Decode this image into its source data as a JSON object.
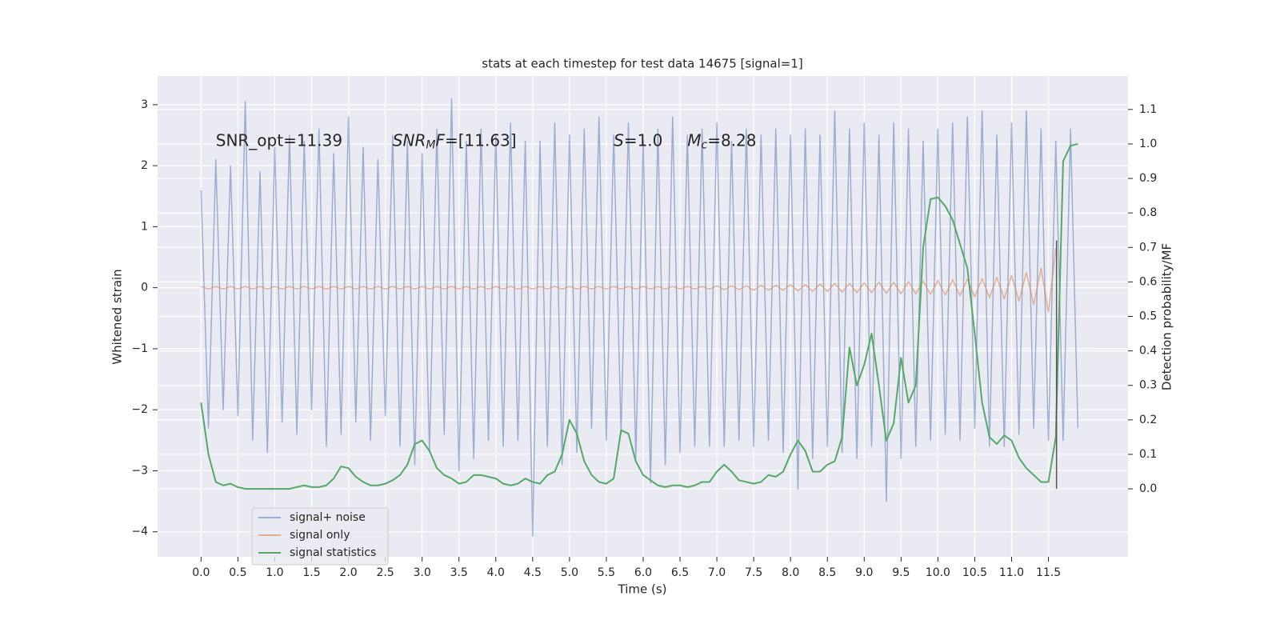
{
  "chart_data": {
    "type": "line",
    "title": "stats at each timestep for test data 14675 [signal=1]",
    "x_label": "Time (s)",
    "y_label": "Whitened strain",
    "y2_label": "Detection probability/MF",
    "xlim": [
      -0.59,
      12.58
    ],
    "ylim": [
      -4.41,
      3.47
    ],
    "y2lim": [
      -0.197,
      1.197
    ],
    "xticks": [
      {
        "value": 0,
        "label": "0.0"
      },
      0.5,
      {
        "value": 1,
        "label": "1.0"
      },
      1.5,
      {
        "value": 2,
        "label": "2.0"
      },
      2.5,
      {
        "value": 3,
        "label": "3.0"
      },
      3.5,
      {
        "value": 4,
        "label": "4.0"
      },
      4.5,
      {
        "value": 5,
        "label": "5.0"
      },
      5.5,
      {
        "value": 6,
        "label": "6.0"
      },
      6.5,
      {
        "value": 7,
        "label": "7.0"
      },
      7.5,
      {
        "value": 8,
        "label": "8.0"
      },
      8.5,
      {
        "value": 9,
        "label": "9.0"
      },
      9.5,
      {
        "value": 10,
        "label": "10.0"
      },
      10.5,
      {
        "value": 11,
        "label": "11.0"
      },
      11.5
    ],
    "yticks": [
      {
        "value": -4,
        "label": "−4"
      },
      {
        "value": -3,
        "label": "−3"
      },
      {
        "value": -2,
        "label": "−2"
      },
      {
        "value": -1,
        "label": "−1"
      },
      0,
      1,
      2,
      3
    ],
    "y2ticks": [
      {
        "value": 0,
        "label": "0.0"
      },
      0.1,
      0.2,
      0.3,
      0.4,
      0.5,
      0.6,
      0.7,
      0.8,
      0.9,
      {
        "value": 1,
        "label": "1.0"
      },
      1.1
    ],
    "grid": true,
    "legend": "lower left",
    "x": [
      0,
      0.1,
      0.2,
      0.3,
      0.4,
      0.5,
      0.6,
      0.7,
      0.8,
      0.9,
      1,
      1.1,
      1.2,
      1.3,
      1.4,
      1.5,
      1.6,
      1.7,
      1.8,
      1.9,
      2,
      2.1,
      2.2,
      2.3,
      2.4,
      2.5,
      2.6,
      2.7,
      2.8,
      2.9,
      3,
      3.1,
      3.2,
      3.3,
      3.4,
      3.5,
      3.6,
      3.7,
      3.8,
      3.9,
      4,
      4.1,
      4.2,
      4.3,
      4.4,
      4.5,
      4.6,
      4.7,
      4.8,
      4.9,
      5,
      5.1,
      5.2,
      5.3,
      5.4,
      5.5,
      5.6,
      5.7,
      5.8,
      5.9,
      6,
      6.1,
      6.2,
      6.3,
      6.4,
      6.5,
      6.6,
      6.7,
      6.8,
      6.9,
      7,
      7.1,
      7.2,
      7.3,
      7.4,
      7.5,
      7.6,
      7.7,
      7.8,
      7.9,
      8,
      8.1,
      8.2,
      8.3,
      8.4,
      8.5,
      8.6,
      8.7,
      8.8,
      8.9,
      9,
      9.1,
      9.2,
      9.3,
      9.4,
      9.5,
      9.6,
      9.7,
      9.8,
      9.9,
      10,
      10.1,
      10.2,
      10.3,
      10.4,
      10.5,
      10.6,
      10.7,
      10.8,
      10.9,
      11,
      11.1,
      11.2,
      11.3,
      11.4,
      11.5,
      11.6,
      11.7,
      11.8,
      11.9
    ],
    "series": [
      {
        "name": "signal+ noise",
        "color": "#4c72b0",
        "opacity": 0.5,
        "axis": "y",
        "values": [
          1.6,
          -2.3,
          2.1,
          -2.0,
          2.0,
          -2.1,
          3.05,
          -2.5,
          1.9,
          -2.7,
          2.3,
          -2.2,
          2.5,
          -2.4,
          2.4,
          -2.0,
          2.6,
          -2.6,
          2.2,
          -2.4,
          2.8,
          -2.2,
          2.3,
          -2.5,
          2.1,
          -2.1,
          2.5,
          -2.6,
          2.4,
          -2.9,
          2.2,
          -2.7,
          2.6,
          -2.4,
          3.1,
          -3.0,
          2.4,
          -2.8,
          2.6,
          -2.5,
          2.5,
          -2.6,
          2.7,
          -2.5,
          2.4,
          -4.07,
          2.4,
          -2.6,
          2.7,
          -2.9,
          2.5,
          -2.7,
          2.6,
          -2.3,
          2.8,
          -2.5,
          2.5,
          -2.4,
          2.7,
          -2.8,
          2.4,
          -3.2,
          2.6,
          -2.9,
          2.8,
          -2.7,
          2.5,
          -2.6,
          2.6,
          -2.6,
          2.7,
          -2.6,
          2.4,
          -2.5,
          2.6,
          -2.6,
          2.5,
          -2.5,
          2.6,
          -2.7,
          2.5,
          -3.3,
          2.6,
          -2.8,
          2.5,
          -2.6,
          2.9,
          -2.7,
          2.6,
          -2.8,
          2.7,
          -2.6,
          2.5,
          -3.5,
          2.7,
          -2.8,
          2.6,
          -2.6,
          2.4,
          -2.5,
          2.6,
          -2.4,
          2.7,
          -2.5,
          2.8,
          -2.3,
          2.9,
          -2.6,
          2.5,
          -2.6,
          2.7,
          -2.4,
          2.9,
          -2.3,
          2.6,
          -2.5,
          2.4,
          -2.5,
          2.6,
          -2.3
        ]
      },
      {
        "name": "signal only",
        "color": "#dd8452",
        "opacity": 0.6,
        "axis": "y",
        "values": [
          0.02,
          -0.02,
          0.02,
          -0.02,
          0.02,
          -0.02,
          0.02,
          -0.02,
          0.02,
          -0.02,
          0.02,
          -0.02,
          0.02,
          -0.02,
          0.02,
          -0.02,
          0.02,
          -0.02,
          0.02,
          -0.02,
          0.02,
          -0.02,
          0.02,
          -0.02,
          0.02,
          -0.02,
          0.02,
          -0.02,
          0.02,
          -0.02,
          0.02,
          -0.02,
          0.02,
          -0.02,
          0.02,
          -0.02,
          0.02,
          -0.02,
          0.02,
          -0.02,
          0.02,
          -0.02,
          0.02,
          -0.02,
          0.02,
          -0.02,
          0.02,
          -0.02,
          0.02,
          -0.02,
          0.02,
          -0.02,
          0.02,
          -0.02,
          0.02,
          -0.02,
          0.02,
          -0.02,
          0.02,
          -0.02,
          0.02,
          -0.02,
          0.02,
          -0.02,
          0.02,
          -0.02,
          0.02,
          -0.02,
          0.02,
          -0.02,
          0.03,
          -0.03,
          0.03,
          -0.03,
          0.03,
          -0.04,
          0.04,
          -0.04,
          0.04,
          -0.04,
          0.05,
          -0.05,
          0.05,
          -0.06,
          0.06,
          -0.06,
          0.07,
          -0.07,
          0.07,
          -0.08,
          0.08,
          -0.08,
          0.09,
          -0.09,
          0.09,
          -0.1,
          0.1,
          -0.1,
          0.11,
          -0.11,
          0.12,
          -0.12,
          0.13,
          -0.13,
          0.14,
          -0.15,
          0.15,
          -0.16,
          0.17,
          -0.18,
          0.2,
          -0.22,
          0.25,
          -0.28,
          0.32,
          -0.4,
          0.65,
          null,
          null,
          null
        ]
      },
      {
        "name": "signal statistics",
        "color": "#55a868",
        "opacity": 1,
        "axis": "y2",
        "values": [
          0.25,
          0.1,
          0.02,
          0.01,
          0.015,
          0.005,
          0.0,
          0.0,
          0.0,
          0.0,
          0.0,
          0.0,
          0.0,
          0.005,
          0.01,
          0.005,
          0.005,
          0.01,
          0.03,
          0.065,
          0.06,
          0.035,
          0.02,
          0.01,
          0.01,
          0.015,
          0.025,
          0.04,
          0.07,
          0.13,
          0.14,
          0.11,
          0.06,
          0.04,
          0.03,
          0.015,
          0.02,
          0.04,
          0.04,
          0.035,
          0.03,
          0.015,
          0.01,
          0.015,
          0.03,
          0.02,
          0.015,
          0.04,
          0.05,
          0.1,
          0.2,
          0.16,
          0.08,
          0.04,
          0.02,
          0.015,
          0.03,
          0.17,
          0.16,
          0.08,
          0.04,
          0.025,
          0.01,
          0.005,
          0.01,
          0.01,
          0.005,
          0.01,
          0.02,
          0.02,
          0.05,
          0.07,
          0.05,
          0.025,
          0.02,
          0.015,
          0.02,
          0.04,
          0.035,
          0.05,
          0.1,
          0.14,
          0.11,
          0.05,
          0.05,
          0.07,
          0.08,
          0.15,
          0.41,
          0.3,
          0.36,
          0.45,
          0.3,
          0.14,
          0.19,
          0.38,
          0.25,
          0.3,
          0.7,
          0.84,
          0.845,
          0.82,
          0.78,
          0.71,
          0.64,
          0.45,
          0.25,
          0.15,
          0.13,
          0.155,
          0.14,
          0.09,
          0.06,
          0.04,
          0.02,
          0.02,
          0.15,
          0.95,
          0.995,
          1.0
        ]
      }
    ],
    "vline": {
      "x": 11.61,
      "y2": [
        0,
        0.72
      ],
      "color": "#555555"
    },
    "annotations": [
      {
        "x": 0.2,
        "y": 2.4,
        "parts": [
          {
            "text": "SNR_opt=11.39"
          }
        ]
      },
      {
        "x": 2.6,
        "y": 2.4,
        "parts": [
          {
            "text": "SNR",
            "style": "italic"
          },
          {
            "text": "M",
            "style": "italic-sub"
          },
          {
            "text": "F",
            "style": "italic"
          },
          {
            "text": "=[11.63]"
          }
        ]
      },
      {
        "x": 5.6,
        "y": 2.4,
        "parts": [
          {
            "text": "S",
            "style": "italic"
          },
          {
            "text": "=1.0"
          }
        ]
      },
      {
        "x": 6.6,
        "y": 2.4,
        "parts": [
          {
            "text": "M",
            "style": "italic"
          },
          {
            "text": "c",
            "style": "italic-sub"
          },
          {
            "text": "=8.28"
          }
        ]
      }
    ]
  }
}
